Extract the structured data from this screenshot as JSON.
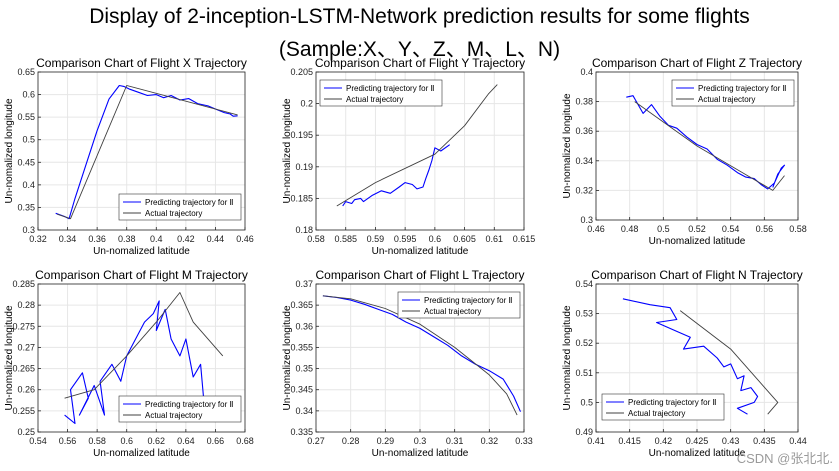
{
  "page": {
    "title_line1": "Display of 2-inception-LSTM-Network prediction results for some flights",
    "title_line2": "(Sample:X、Y、Z、M、L、N)",
    "watermark": "CSDN @张北北."
  },
  "colors": {
    "predicted": "#0000ff",
    "actual": "#404040",
    "grid": "#e6e6e6",
    "axis": "#262626"
  },
  "chart_data": [
    {
      "type": "line",
      "title": "Comparison Chart of Flight X Trajectory",
      "xlabel": "Un-nomalized latitude",
      "ylabel": "Un-nomalized longitude",
      "xlim": [
        0.32,
        0.46
      ],
      "ylim": [
        0.3,
        0.65
      ],
      "xticks": [
        0.32,
        0.34,
        0.36,
        0.38,
        0.4,
        0.42,
        0.44,
        0.46
      ],
      "yticks": [
        0.3,
        0.35,
        0.4,
        0.45,
        0.5,
        0.55,
        0.6,
        0.65
      ],
      "xtick_labels": [
        "0.32",
        "0.34",
        "0.36",
        "0.38",
        "0.4",
        "0.42",
        "0.44",
        "0.46"
      ],
      "ytick_labels": [
        "0.3",
        "0.35",
        "0.4",
        "0.45",
        "0.5",
        "0.55",
        "0.6",
        "0.65"
      ],
      "legend_position": "bottom-right",
      "series": [
        {
          "name": "Predicting trajectory for Ⅱ",
          "x": [
            0.332,
            0.338,
            0.341,
            0.345,
            0.352,
            0.36,
            0.368,
            0.375,
            0.378,
            0.382,
            0.388,
            0.394,
            0.4,
            0.405,
            0.41,
            0.416,
            0.422,
            0.428,
            0.435,
            0.44,
            0.446,
            0.45,
            0.452,
            0.455
          ],
          "y": [
            0.337,
            0.33,
            0.325,
            0.37,
            0.44,
            0.52,
            0.59,
            0.62,
            0.618,
            0.612,
            0.605,
            0.598,
            0.6,
            0.593,
            0.598,
            0.588,
            0.591,
            0.58,
            0.575,
            0.568,
            0.56,
            0.557,
            0.552,
            0.553
          ]
        },
        {
          "name": "Actual trajectory",
          "x": [
            0.333,
            0.342,
            0.38,
            0.455
          ],
          "y": [
            0.335,
            0.325,
            0.62,
            0.555
          ]
        }
      ]
    },
    {
      "type": "line",
      "title": "Comparison Chart of Flight Y Trajectory",
      "xlabel": "Un-nomalized latitude",
      "ylabel": "Un-nomalized longitude",
      "xlim": [
        0.58,
        0.615
      ],
      "ylim": [
        0.18,
        0.205
      ],
      "xticks": [
        0.58,
        0.585,
        0.59,
        0.595,
        0.6,
        0.605,
        0.61,
        0.615
      ],
      "yticks": [
        0.18,
        0.185,
        0.19,
        0.195,
        0.2,
        0.205
      ],
      "xtick_labels": [
        "0.58",
        "0.585",
        "0.59",
        "0.595",
        "0.6",
        "0.605",
        "0.61",
        "0.615"
      ],
      "ytick_labels": [
        "0.18",
        "0.185",
        "0.19",
        "0.195",
        "0.2",
        "0.205"
      ],
      "legend_position": "top-left",
      "series": [
        {
          "name": "Predicting trajectory for Ⅱ",
          "x": [
            0.5845,
            0.585,
            0.586,
            0.5865,
            0.5875,
            0.588,
            0.5895,
            0.591,
            0.5925,
            0.594,
            0.595,
            0.5962,
            0.597,
            0.598,
            0.5985,
            0.599,
            0.5995,
            0.6,
            0.601,
            0.6025
          ],
          "y": [
            0.1838,
            0.1845,
            0.1842,
            0.1848,
            0.185,
            0.1845,
            0.1855,
            0.1862,
            0.1858,
            0.1868,
            0.1875,
            0.1872,
            0.1865,
            0.1868,
            0.1882,
            0.1895,
            0.191,
            0.193,
            0.1925,
            0.1935
          ]
        },
        {
          "name": "Actual trajectory",
          "x": [
            0.5835,
            0.59,
            0.6,
            0.605,
            0.609,
            0.6105
          ],
          "y": [
            0.1838,
            0.1875,
            0.192,
            0.1965,
            0.2015,
            0.203
          ]
        }
      ]
    },
    {
      "type": "line",
      "title": "Comparison Chart of Flight Z Trajectory",
      "xlabel": "Un-nomalized latitude",
      "ylabel": "Un-nomalized longitude",
      "xlim": [
        0.46,
        0.58
      ],
      "ylim": [
        0.3,
        0.4
      ],
      "xticks": [
        0.46,
        0.48,
        0.5,
        0.52,
        0.54,
        0.56,
        0.58
      ],
      "yticks": [
        0.3,
        0.32,
        0.34,
        0.36,
        0.38,
        0.4
      ],
      "xtick_labels": [
        "0.46",
        "0.48",
        "0.5",
        "0.52",
        "0.54",
        "0.56",
        "0.58"
      ],
      "ytick_labels": [
        "0.3",
        "0.32",
        "0.34",
        "0.36",
        "0.38",
        "0.4"
      ],
      "legend_position": "top-right",
      "series": [
        {
          "name": "Predicting trajectory for Ⅱ",
          "x": [
            0.478,
            0.482,
            0.485,
            0.488,
            0.493,
            0.498,
            0.503,
            0.508,
            0.514,
            0.52,
            0.526,
            0.532,
            0.538,
            0.544,
            0.549,
            0.554,
            0.558,
            0.562,
            0.566,
            0.57,
            0.572,
            0.568,
            0.565
          ],
          "y": [
            0.383,
            0.384,
            0.378,
            0.372,
            0.378,
            0.37,
            0.364,
            0.362,
            0.356,
            0.351,
            0.348,
            0.341,
            0.337,
            0.332,
            0.329,
            0.328,
            0.324,
            0.321,
            0.325,
            0.335,
            0.337,
            0.331,
            0.322
          ]
        },
        {
          "name": "Actual trajectory",
          "x": [
            0.483,
            0.52,
            0.55,
            0.565,
            0.572
          ],
          "y": [
            0.38,
            0.35,
            0.33,
            0.32,
            0.33
          ]
        }
      ]
    },
    {
      "type": "line",
      "title": "Comparison Chart of Flight M Trajectory",
      "xlabel": "Un-nomalized latitude",
      "ylabel": "Un-nomalized longitude",
      "xlim": [
        0.54,
        0.68
      ],
      "ylim": [
        0.25,
        0.285
      ],
      "xticks": [
        0.54,
        0.56,
        0.58,
        0.6,
        0.62,
        0.64,
        0.66,
        0.68
      ],
      "yticks": [
        0.25,
        0.255,
        0.26,
        0.265,
        0.27,
        0.275,
        0.28,
        0.285
      ],
      "xtick_labels": [
        "0.54",
        "0.56",
        "0.58",
        "0.6",
        "0.62",
        "0.64",
        "0.66",
        "0.68"
      ],
      "ytick_labels": [
        "0.25",
        "0.255",
        "0.26",
        "0.265",
        "0.27",
        "0.275",
        "0.28",
        "0.285"
      ],
      "legend_position": "bottom-right",
      "series": [
        {
          "name": "Predicting trajectory for Ⅱ",
          "x": [
            0.558,
            0.565,
            0.562,
            0.57,
            0.574,
            0.568,
            0.578,
            0.585,
            0.582,
            0.59,
            0.596,
            0.6,
            0.606,
            0.612,
            0.618,
            0.622,
            0.62,
            0.626,
            0.63,
            0.636,
            0.64,
            0.645,
            0.65,
            0.652
          ],
          "y": [
            0.254,
            0.252,
            0.26,
            0.264,
            0.258,
            0.254,
            0.261,
            0.254,
            0.262,
            0.266,
            0.262,
            0.268,
            0.272,
            0.276,
            0.278,
            0.281,
            0.274,
            0.279,
            0.272,
            0.268,
            0.272,
            0.263,
            0.266,
            0.258
          ]
        },
        {
          "name": "Actual trajectory",
          "x": [
            0.558,
            0.578,
            0.6,
            0.62,
            0.636,
            0.645,
            0.665
          ],
          "y": [
            0.258,
            0.26,
            0.268,
            0.276,
            0.283,
            0.276,
            0.268
          ]
        }
      ]
    },
    {
      "type": "line",
      "title": "Comparison Chart of Flight L Trajectory",
      "xlabel": "Un-nomalized latitude",
      "ylabel": "Un-nomalized longitude",
      "xlim": [
        0.27,
        0.33
      ],
      "ylim": [
        0.335,
        0.37
      ],
      "xticks": [
        0.27,
        0.28,
        0.29,
        0.3,
        0.31,
        0.32,
        0.33
      ],
      "yticks": [
        0.335,
        0.34,
        0.345,
        0.35,
        0.355,
        0.36,
        0.365,
        0.37
      ],
      "xtick_labels": [
        "0.27",
        "0.28",
        "0.29",
        "0.3",
        "0.31",
        "0.32",
        "0.33"
      ],
      "ytick_labels": [
        "0.335",
        "0.34",
        "0.345",
        "0.35",
        "0.355",
        "0.36",
        "0.365",
        "0.37"
      ],
      "legend_position": "top-right",
      "series": [
        {
          "name": "Predicting trajectory for Ⅱ",
          "x": [
            0.272,
            0.276,
            0.28,
            0.284,
            0.288,
            0.292,
            0.296,
            0.3,
            0.304,
            0.308,
            0.312,
            0.316,
            0.32,
            0.324,
            0.327,
            0.329
          ],
          "y": [
            0.3672,
            0.3668,
            0.3662,
            0.3652,
            0.364,
            0.3628,
            0.361,
            0.3595,
            0.3575,
            0.3555,
            0.353,
            0.351,
            0.3495,
            0.3475,
            0.3435,
            0.3398
          ]
        },
        {
          "name": "Actual trajectory",
          "x": [
            0.272,
            0.28,
            0.29,
            0.3,
            0.31,
            0.32,
            0.325,
            0.328
          ],
          "y": [
            0.3672,
            0.3665,
            0.3642,
            0.3605,
            0.355,
            0.3485,
            0.344,
            0.339
          ]
        }
      ]
    },
    {
      "type": "line",
      "title": "Comparison Chart of Flight N Trajectory",
      "xlabel": "Un-nomalized latitude",
      "ylabel": "Un-nomalized longitude",
      "xlim": [
        0.41,
        0.44
      ],
      "ylim": [
        0.49,
        0.54
      ],
      "xticks": [
        0.41,
        0.415,
        0.42,
        0.425,
        0.43,
        0.435,
        0.44
      ],
      "yticks": [
        0.49,
        0.5,
        0.51,
        0.52,
        0.53,
        0.54
      ],
      "xtick_labels": [
        "0.41",
        "0.415",
        "0.42",
        "0.425",
        "0.43",
        "0.435",
        "0.44"
      ],
      "ytick_labels": [
        "0.49",
        "0.5",
        "0.51",
        "0.52",
        "0.53",
        "0.54"
      ],
      "legend_position": "bottom-left",
      "series": [
        {
          "name": "Predicting trajectory for Ⅱ",
          "x": [
            0.414,
            0.418,
            0.421,
            0.422,
            0.419,
            0.422,
            0.424,
            0.423,
            0.426,
            0.428,
            0.429,
            0.43,
            0.431,
            0.432,
            0.4315,
            0.433,
            0.434,
            0.4335,
            0.431,
            0.4325
          ],
          "y": [
            0.535,
            0.533,
            0.532,
            0.528,
            0.527,
            0.524,
            0.522,
            0.518,
            0.519,
            0.515,
            0.512,
            0.513,
            0.508,
            0.509,
            0.504,
            0.505,
            0.502,
            0.5,
            0.498,
            0.496
          ]
        },
        {
          "name": "Actual trajectory",
          "x": [
            0.4225,
            0.43,
            0.437,
            0.4355
          ],
          "y": [
            0.531,
            0.518,
            0.5,
            0.496
          ]
        }
      ]
    }
  ]
}
